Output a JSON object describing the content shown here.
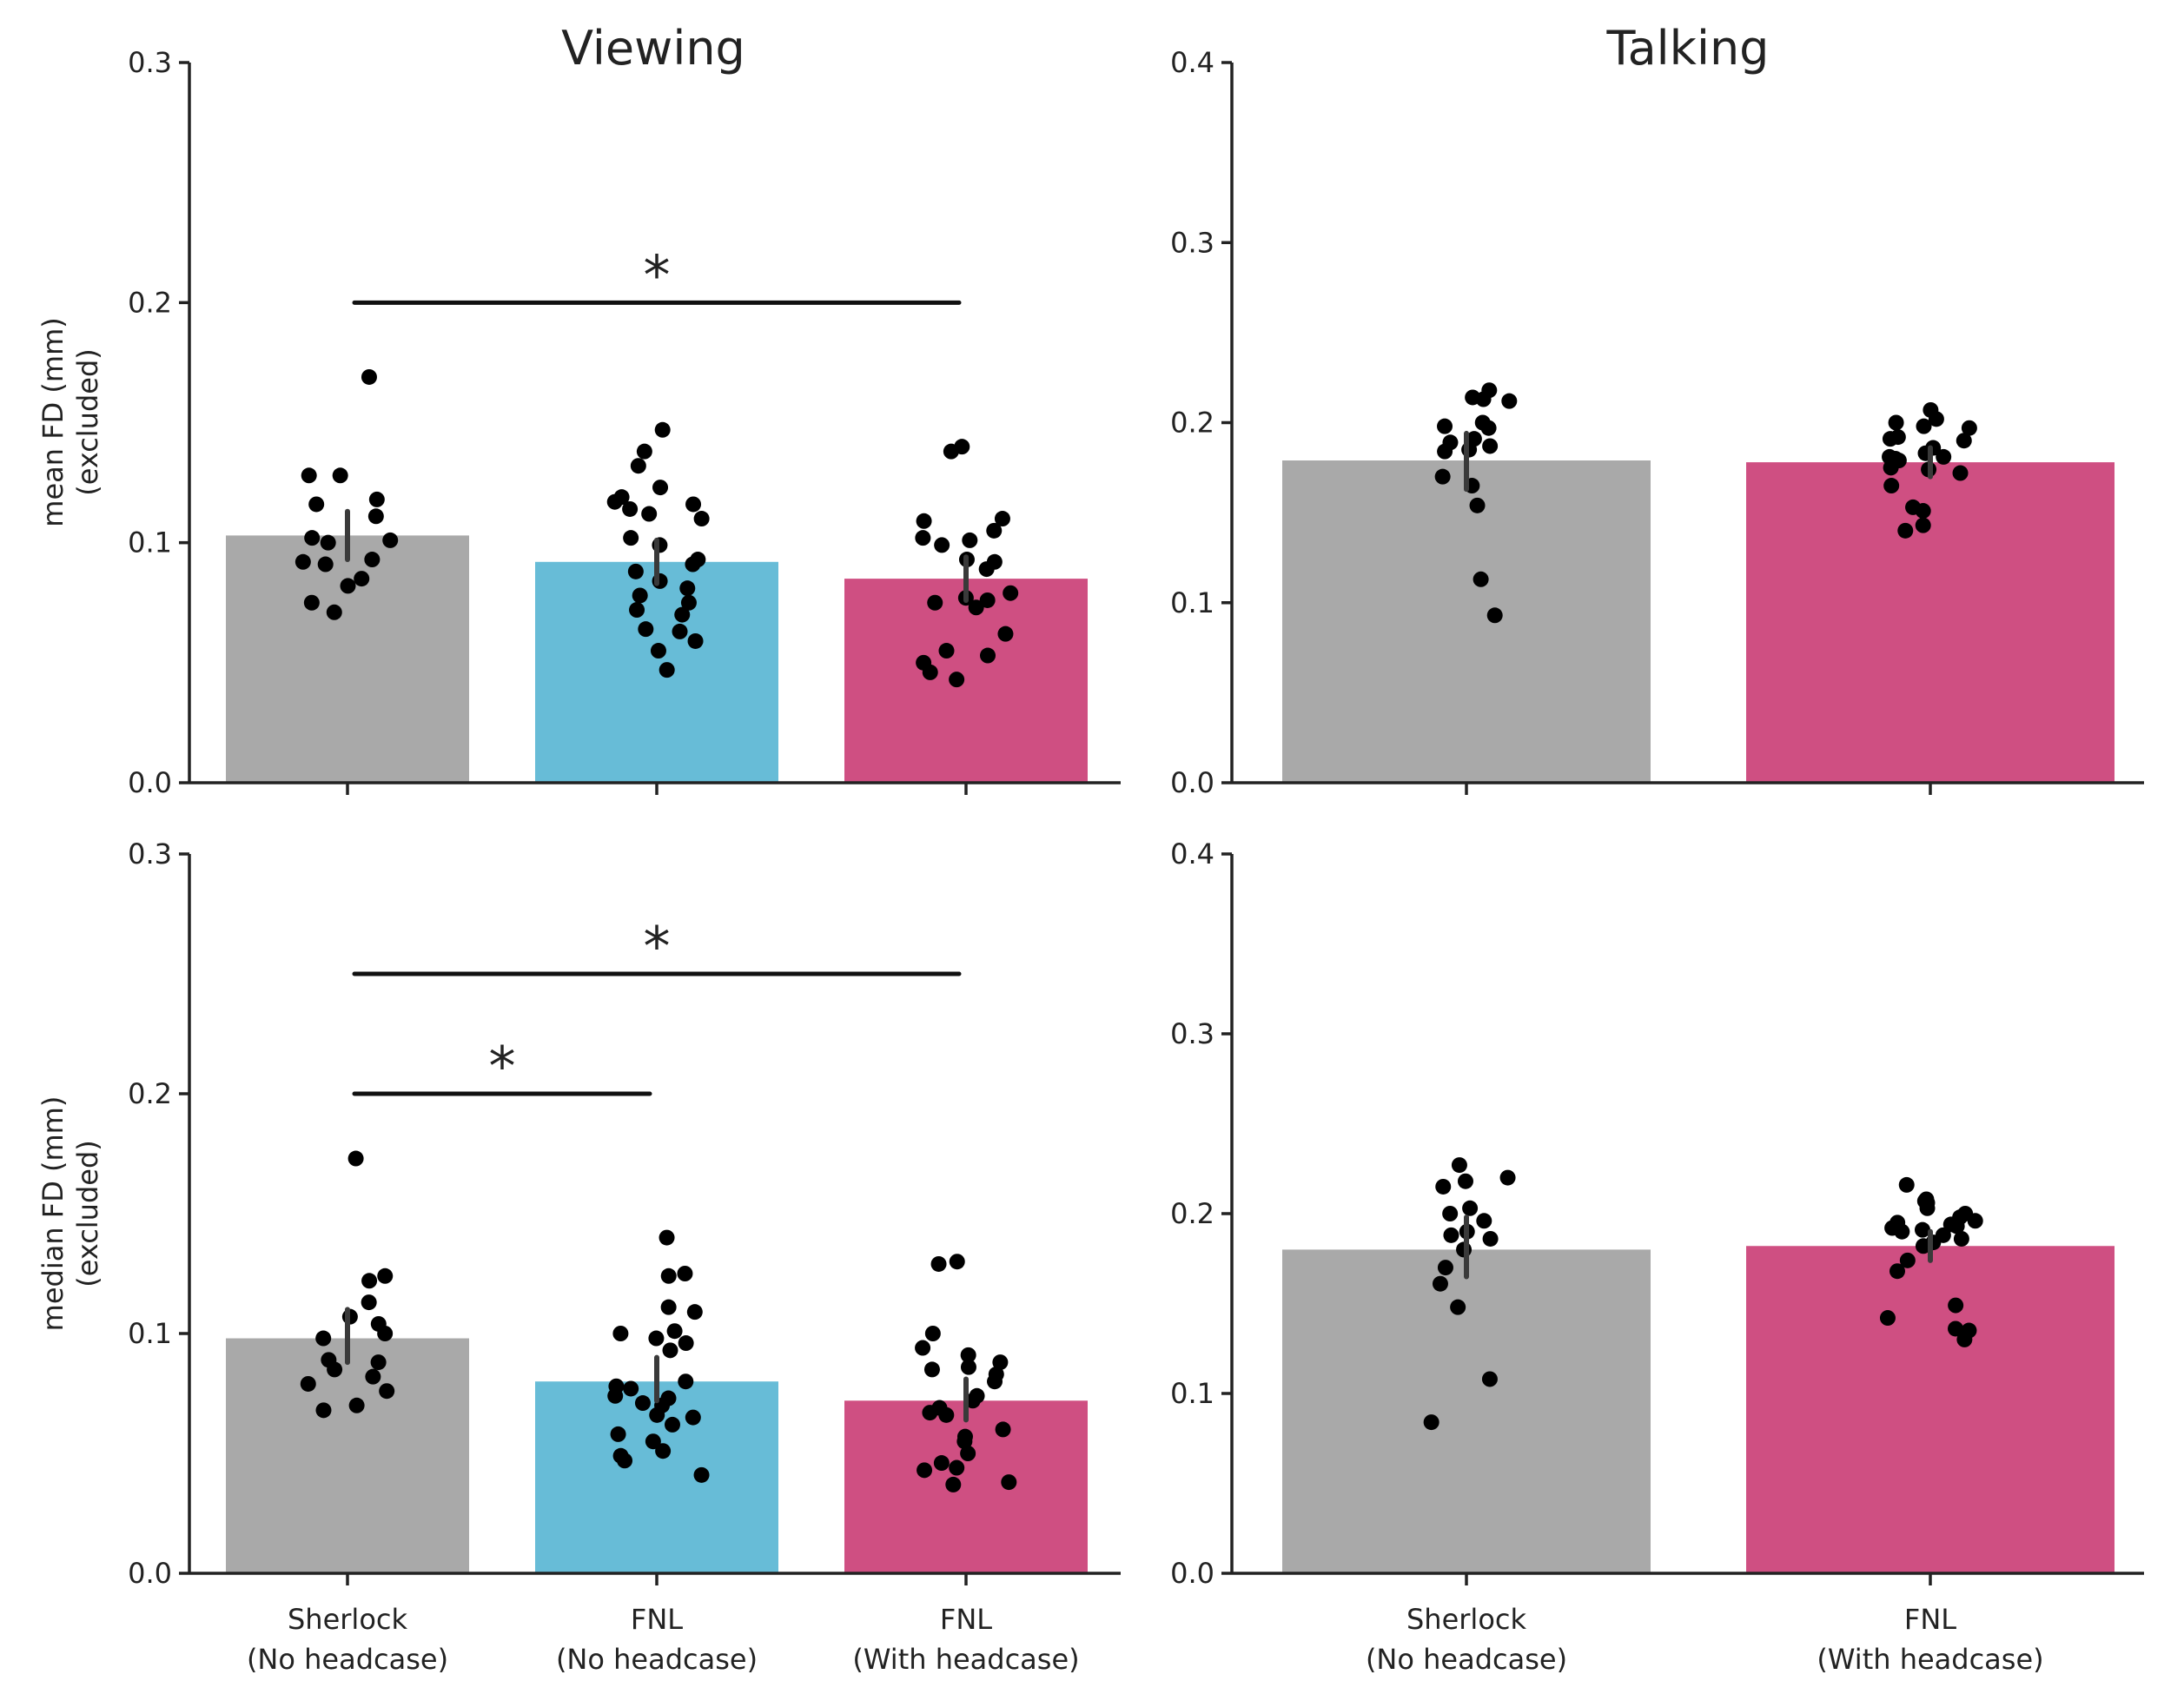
{
  "colors": {
    "sherlock": "#a9a9a9",
    "fnl_no": "#67bcd7",
    "fnl_with": "#cf4f82",
    "dots": "#000000",
    "error_bar": "#3a3a3a"
  },
  "chart_data": [
    {
      "type": "bar",
      "panel": "top-left",
      "title": "Viewing",
      "ylabel": [
        "mean FD (mm)",
        "(excluded)"
      ],
      "ylim": [
        0,
        0.3
      ],
      "yticks": [
        "0.0",
        "0.1",
        "0.2",
        "0.3"
      ],
      "categories": [
        [
          "Sherlock",
          "(No headcase)"
        ],
        [
          "FNL",
          "(No headcase)"
        ],
        [
          "FNL",
          "(With headcase)"
        ]
      ],
      "show_xtick_labels": false,
      "values": [
        0.103,
        0.092,
        0.085
      ],
      "errors": [
        [
          0.093,
          0.113
        ],
        [
          0.083,
          0.101
        ],
        [
          0.076,
          0.094
        ]
      ],
      "points": [
        [
          0.169,
          0.128,
          0.128,
          0.118,
          0.116,
          0.111,
          0.102,
          0.101,
          0.1,
          0.093,
          0.092,
          0.091,
          0.085,
          0.082,
          0.075,
          0.071
        ],
        [
          0.147,
          0.138,
          0.132,
          0.123,
          0.119,
          0.117,
          0.116,
          0.114,
          0.112,
          0.11,
          0.102,
          0.099,
          0.093,
          0.091,
          0.088,
          0.084,
          0.081,
          0.078,
          0.075,
          0.072,
          0.07,
          0.064,
          0.063,
          0.059,
          0.055,
          0.047
        ],
        [
          0.14,
          0.138,
          0.11,
          0.109,
          0.105,
          0.102,
          0.101,
          0.099,
          0.093,
          0.092,
          0.089,
          0.079,
          0.077,
          0.076,
          0.075,
          0.073,
          0.062,
          0.055,
          0.053,
          0.05,
          0.046,
          0.043
        ]
      ],
      "significance": [
        {
          "from": 0,
          "to": 2,
          "y": 0.2,
          "label": "*"
        }
      ]
    },
    {
      "type": "bar",
      "panel": "top-right",
      "title": "Talking",
      "ylim": [
        0,
        0.4
      ],
      "yticks": [
        "0.0",
        "0.1",
        "0.2",
        "0.3",
        "0.4"
      ],
      "categories": [
        [
          "Sherlock",
          "(No headcase)"
        ],
        [
          "FNL",
          "(With headcase)"
        ]
      ],
      "show_xtick_labels": false,
      "values": [
        0.179,
        0.178
      ],
      "errors": [
        [
          0.163,
          0.194
        ],
        [
          0.17,
          0.186
        ]
      ],
      "points": [
        [
          0.218,
          0.214,
          0.213,
          0.212,
          0.2,
          0.198,
          0.197,
          0.191,
          0.189,
          0.187,
          0.185,
          0.184,
          0.17,
          0.165,
          0.154,
          0.113,
          0.093
        ],
        [
          0.207,
          0.202,
          0.2,
          0.198,
          0.197,
          0.192,
          0.191,
          0.19,
          0.186,
          0.183,
          0.181,
          0.181,
          0.18,
          0.179,
          0.175,
          0.174,
          0.172,
          0.165,
          0.153,
          0.151,
          0.143,
          0.14
        ]
      ],
      "significance": []
    },
    {
      "type": "bar",
      "panel": "bottom-left",
      "ylabel": [
        "median FD (mm)",
        "(excluded)"
      ],
      "ylim": [
        0,
        0.3
      ],
      "yticks": [
        "0.0",
        "0.1",
        "0.2",
        "0.3"
      ],
      "categories": [
        [
          "Sherlock",
          "(No headcase)"
        ],
        [
          "FNL",
          "(No headcase)"
        ],
        [
          "FNL",
          "(With headcase)"
        ]
      ],
      "show_xtick_labels": true,
      "values": [
        0.098,
        0.08,
        0.072
      ],
      "errors": [
        [
          0.088,
          0.11
        ],
        [
          0.072,
          0.09
        ],
        [
          0.064,
          0.081
        ]
      ],
      "points": [
        [
          0.173,
          0.124,
          0.122,
          0.113,
          0.107,
          0.104,
          0.1,
          0.098,
          0.089,
          0.088,
          0.085,
          0.082,
          0.079,
          0.076,
          0.07,
          0.068
        ],
        [
          0.14,
          0.125,
          0.124,
          0.111,
          0.109,
          0.101,
          0.1,
          0.098,
          0.096,
          0.093,
          0.08,
          0.078,
          0.077,
          0.074,
          0.073,
          0.071,
          0.07,
          0.066,
          0.065,
          0.062,
          0.058,
          0.055,
          0.051,
          0.049,
          0.047,
          0.041
        ],
        [
          0.13,
          0.129,
          0.1,
          0.094,
          0.091,
          0.088,
          0.086,
          0.085,
          0.083,
          0.08,
          0.074,
          0.072,
          0.069,
          0.067,
          0.066,
          0.06,
          0.057,
          0.055,
          0.05,
          0.046,
          0.044,
          0.043,
          0.038,
          0.037
        ]
      ],
      "significance": [
        {
          "from": 0,
          "to": 2,
          "y": 0.25,
          "label": "*"
        },
        {
          "from": 0,
          "to": 1,
          "y": 0.2,
          "label": "*"
        }
      ]
    },
    {
      "type": "bar",
      "panel": "bottom-right",
      "ylim": [
        0,
        0.4
      ],
      "yticks": [
        "0.0",
        "0.1",
        "0.2",
        "0.3",
        "0.4"
      ],
      "categories": [
        [
          "Sherlock",
          "(No headcase)"
        ],
        [
          "FNL",
          "(With headcase)"
        ]
      ],
      "show_xtick_labels": true,
      "values": [
        0.18,
        0.182
      ],
      "errors": [
        [
          0.165,
          0.198
        ],
        [
          0.174,
          0.19
        ]
      ],
      "points": [
        [
          0.227,
          0.22,
          0.218,
          0.215,
          0.203,
          0.2,
          0.196,
          0.19,
          0.188,
          0.186,
          0.18,
          0.17,
          0.161,
          0.148,
          0.108,
          0.084
        ],
        [
          0.216,
          0.208,
          0.207,
          0.206,
          0.203,
          0.2,
          0.198,
          0.196,
          0.195,
          0.194,
          0.193,
          0.192,
          0.191,
          0.19,
          0.188,
          0.186,
          0.184,
          0.182,
          0.174,
          0.168,
          0.149,
          0.142,
          0.136,
          0.135,
          0.13
        ]
      ],
      "significance": []
    }
  ]
}
